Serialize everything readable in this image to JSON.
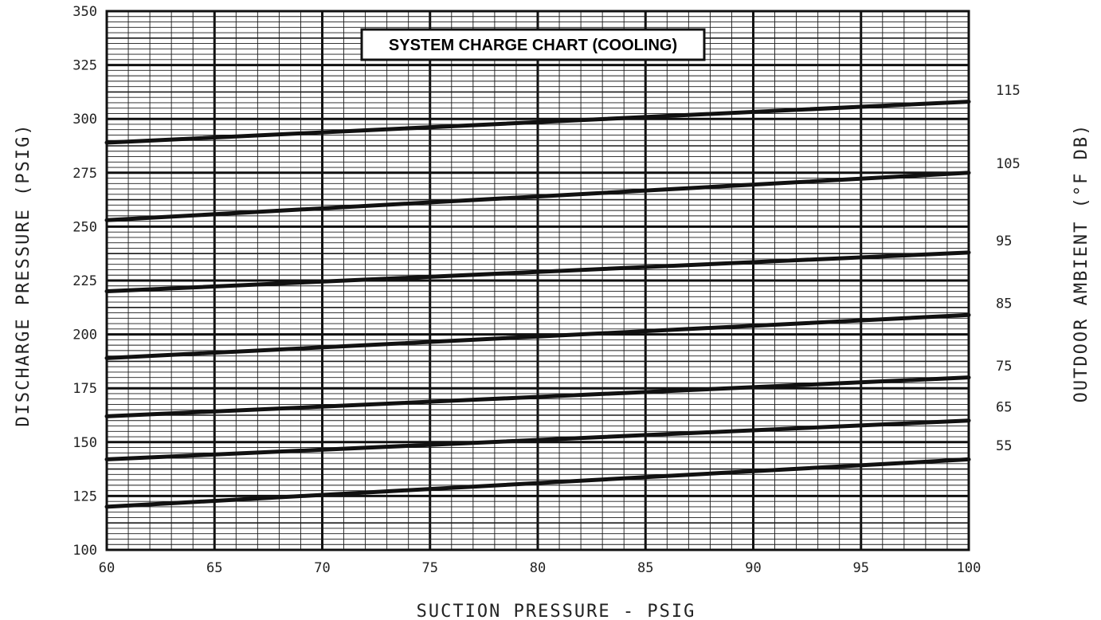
{
  "chart_data": {
    "type": "line",
    "title": "SYSTEM CHARGE CHART (COOLING)",
    "xlabel": "SUCTION PRESSURE - PSIG",
    "ylabel": "DISCHARGE PRESSURE (PSIG)",
    "ylabel_right": "OUTDOOR AMBIENT (°F DB)",
    "xlim": [
      60,
      100
    ],
    "ylim": [
      100,
      350
    ],
    "x_ticks": [
      "60",
      "65",
      "70",
      "75",
      "80",
      "85",
      "90",
      "95",
      "100"
    ],
    "y_ticks": [
      "100",
      "125",
      "150",
      "175",
      "200",
      "225",
      "250",
      "275",
      "300",
      "325",
      "350"
    ],
    "grid": true,
    "series": [
      {
        "name": "115",
        "x": [
          60,
          100
        ],
        "values": [
          289,
          308
        ]
      },
      {
        "name": "105",
        "x": [
          60,
          100
        ],
        "values": [
          253,
          275
        ]
      },
      {
        "name": "95",
        "x": [
          60,
          100
        ],
        "values": [
          220,
          238
        ]
      },
      {
        "name": "85",
        "x": [
          60,
          100
        ],
        "values": [
          189,
          209
        ]
      },
      {
        "name": "75",
        "x": [
          60,
          100
        ],
        "values": [
          162,
          180
        ]
      },
      {
        "name": "65",
        "x": [
          60,
          100
        ],
        "values": [
          142,
          160
        ]
      },
      {
        "name": "55",
        "x": [
          60,
          100
        ],
        "values": [
          120,
          142
        ]
      }
    ],
    "right_labels": [
      {
        "text": "115",
        "y": 309
      },
      {
        "text": "105",
        "y": 275
      },
      {
        "text": "95",
        "y": 239
      },
      {
        "text": "85",
        "y": 210
      },
      {
        "text": "75",
        "y": 181
      },
      {
        "text": "65",
        "y": 162
      },
      {
        "text": "55",
        "y": 144
      }
    ]
  }
}
